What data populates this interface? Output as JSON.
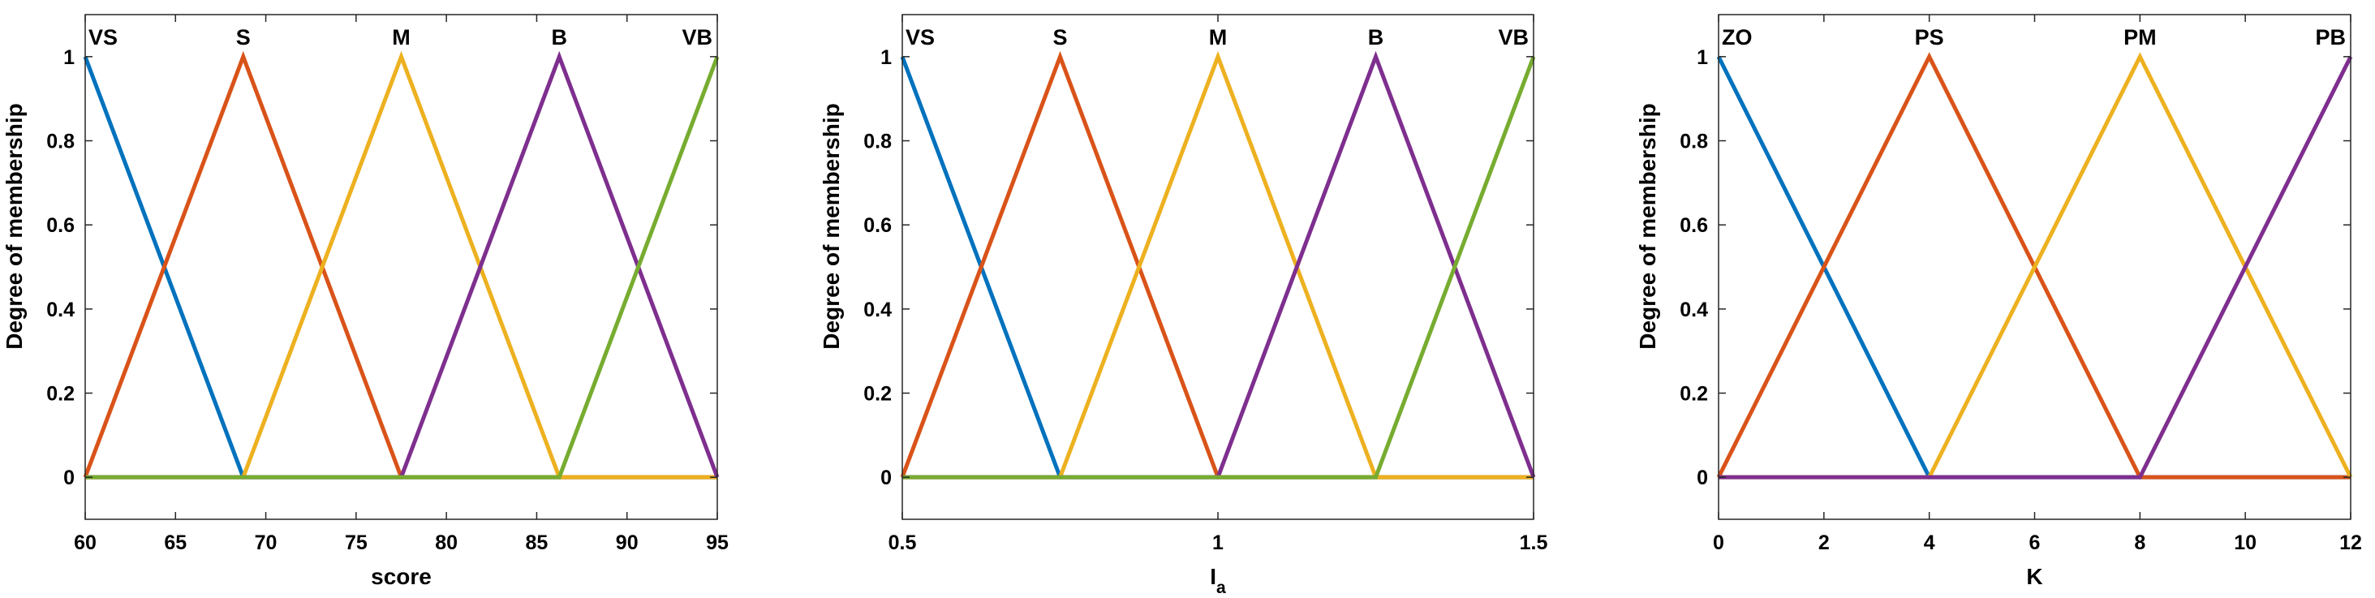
{
  "chart_data": [
    {
      "type": "line",
      "xlabel": "score",
      "ylabel": "Degree of membership",
      "xlim": [
        60,
        95
      ],
      "ylim": [
        -0.1,
        1.1
      ],
      "xticks": [
        60,
        65,
        70,
        75,
        80,
        85,
        90,
        95
      ],
      "xtick_labels": [
        "60",
        "65",
        "70",
        "75",
        "80",
        "85",
        "90",
        "95"
      ],
      "yticks": [
        0,
        0.2,
        0.4,
        0.6,
        0.8,
        1
      ],
      "ytick_labels": [
        "0",
        "0.2",
        "0.4",
        "0.6",
        "0.8",
        "1"
      ],
      "grid": false,
      "series": [
        {
          "name": "VS",
          "color": "#0072BD",
          "x": [
            60,
            60,
            68.75,
            95
          ],
          "y": [
            1,
            1,
            0,
            0
          ]
        },
        {
          "name": "S",
          "color": "#D95319",
          "x": [
            60,
            68.75,
            77.5,
            95
          ],
          "y": [
            0,
            1,
            0,
            0
          ]
        },
        {
          "name": "M",
          "color": "#EDB120",
          "x": [
            60,
            68.75,
            77.5,
            86.25,
            95
          ],
          "y": [
            0,
            0,
            1,
            0,
            0
          ]
        },
        {
          "name": "B",
          "color": "#7E2F8E",
          "x": [
            60,
            77.5,
            86.25,
            95
          ],
          "y": [
            0,
            0,
            1,
            0
          ]
        },
        {
          "name": "VB",
          "color": "#77AC30",
          "x": [
            60,
            86.25,
            95
          ],
          "y": [
            0,
            0,
            1
          ]
        }
      ]
    },
    {
      "type": "line",
      "xlabel": "I",
      "xlabel_sub": "a",
      "ylabel": "Degree of membership",
      "xlim": [
        0.5,
        1.5
      ],
      "ylim": [
        -0.1,
        1.1
      ],
      "xticks": [
        0.5,
        1,
        1.5
      ],
      "xtick_labels": [
        "0.5",
        "1",
        "1.5"
      ],
      "yticks": [
        0,
        0.2,
        0.4,
        0.6,
        0.8,
        1
      ],
      "ytick_labels": [
        "0",
        "0.2",
        "0.4",
        "0.6",
        "0.8",
        "1"
      ],
      "grid": false,
      "series": [
        {
          "name": "VS",
          "color": "#0072BD",
          "x": [
            0.5,
            0.5,
            0.75,
            1.5
          ],
          "y": [
            1,
            1,
            0,
            0
          ]
        },
        {
          "name": "S",
          "color": "#D95319",
          "x": [
            0.5,
            0.75,
            1.0,
            1.5
          ],
          "y": [
            0,
            1,
            0,
            0
          ]
        },
        {
          "name": "M",
          "color": "#EDB120",
          "x": [
            0.5,
            0.75,
            1.0,
            1.25,
            1.5
          ],
          "y": [
            0,
            0,
            1,
            0,
            0
          ]
        },
        {
          "name": "B",
          "color": "#7E2F8E",
          "x": [
            0.5,
            1.0,
            1.25,
            1.5
          ],
          "y": [
            0,
            0,
            1,
            0
          ]
        },
        {
          "name": "VB",
          "color": "#77AC30",
          "x": [
            0.5,
            1.25,
            1.5
          ],
          "y": [
            0,
            0,
            1
          ]
        }
      ]
    },
    {
      "type": "line",
      "xlabel": "K",
      "ylabel": "Degree of membership",
      "xlim": [
        0,
        12
      ],
      "ylim": [
        -0.1,
        1.1
      ],
      "xticks": [
        0,
        2,
        4,
        6,
        8,
        10,
        12
      ],
      "xtick_labels": [
        "0",
        "2",
        "4",
        "6",
        "8",
        "10",
        "12"
      ],
      "yticks": [
        0,
        0.2,
        0.4,
        0.6,
        0.8,
        1
      ],
      "ytick_labels": [
        "0",
        "0.2",
        "0.4",
        "0.6",
        "0.8",
        "1"
      ],
      "grid": false,
      "series": [
        {
          "name": "ZO",
          "color": "#0072BD",
          "x": [
            0,
            0,
            4,
            12
          ],
          "y": [
            1,
            1,
            0,
            0
          ]
        },
        {
          "name": "PS",
          "color": "#D95319",
          "x": [
            0,
            4,
            8,
            12
          ],
          "y": [
            0,
            1,
            0,
            0
          ]
        },
        {
          "name": "PM",
          "color": "#EDB120",
          "x": [
            0,
            4,
            8,
            12
          ],
          "y": [
            0,
            0,
            1,
            0
          ]
        },
        {
          "name": "PB",
          "color": "#7E2F8E",
          "x": [
            0,
            8,
            12
          ],
          "y": [
            0,
            0,
            1
          ]
        }
      ]
    }
  ]
}
